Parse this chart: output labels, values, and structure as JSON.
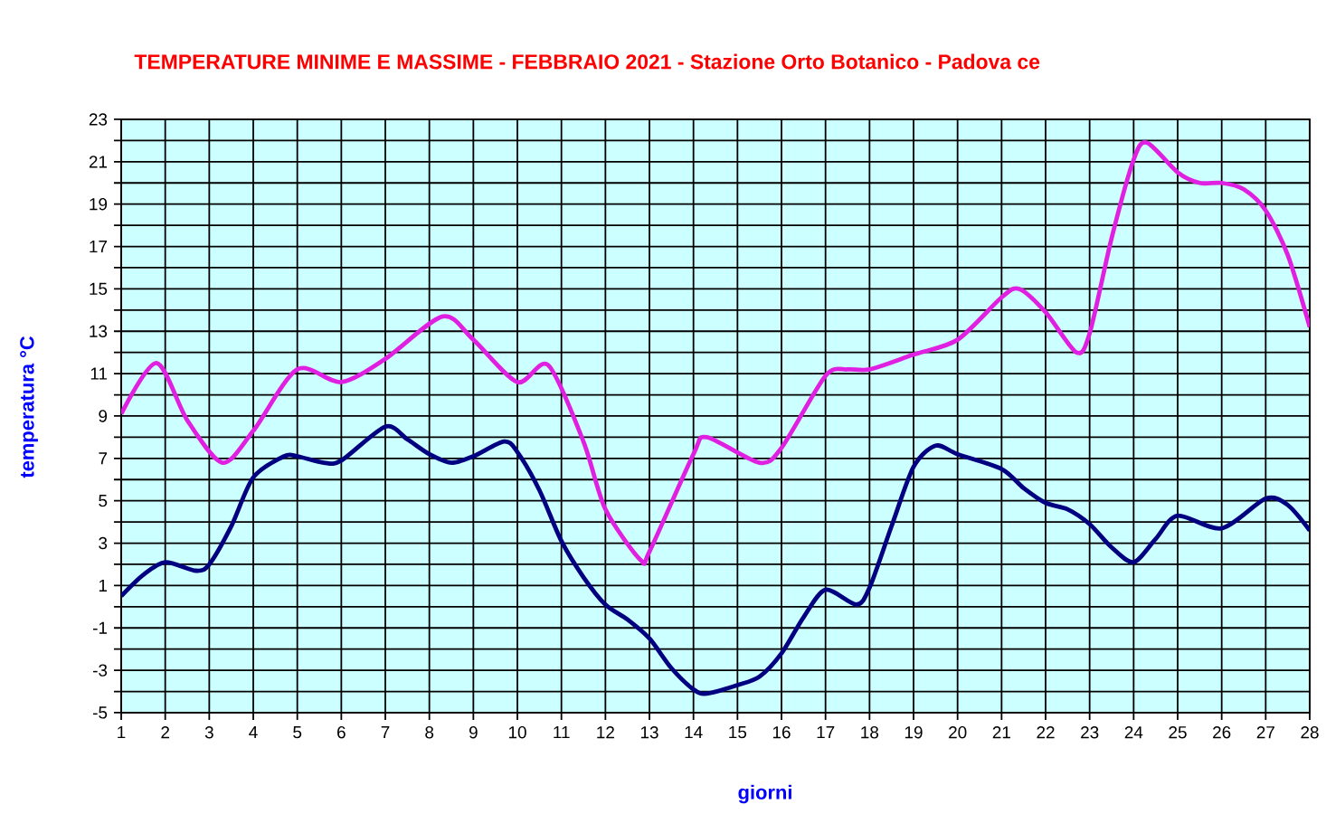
{
  "chart_data": {
    "type": "line",
    "title": "TEMPERATURE MINIME E MASSIME  - FEBBRAIO 2021 - Stazione Orto Botanico - Padova ce",
    "xlabel": "giorni",
    "ylabel": "temperatura °C",
    "xlim": [
      1,
      28
    ],
    "ylim": [
      -5,
      23
    ],
    "xticks": [
      1,
      2,
      3,
      4,
      5,
      6,
      7,
      8,
      9,
      10,
      11,
      12,
      13,
      14,
      15,
      16,
      17,
      18,
      19,
      20,
      21,
      22,
      23,
      24,
      25,
      26,
      27,
      28
    ],
    "yticks": [
      -5,
      {
        "value": -4,
        "label": null
      },
      -3,
      {
        "value": -2,
        "label": null
      },
      -1,
      {
        "value": 0,
        "label": null
      },
      1,
      {
        "value": 2,
        "label": null
      },
      3,
      {
        "value": 4,
        "label": null
      },
      5,
      {
        "value": 6,
        "label": null
      },
      7,
      {
        "value": 8,
        "label": null
      },
      9,
      {
        "value": 10,
        "label": null
      },
      11,
      {
        "value": 12,
        "label": null
      },
      13,
      {
        "value": 14,
        "label": null
      },
      15,
      {
        "value": 16,
        "label": null
      },
      17,
      {
        "value": 18,
        "label": null
      },
      19,
      {
        "value": 20,
        "label": null
      },
      21,
      {
        "value": 22,
        "label": null
      },
      23
    ],
    "grid": true,
    "series": [
      {
        "color": "#e020e0",
        "x": [
          1,
          1.8,
          2.5,
          3.3,
          4,
          5,
          6,
          7,
          8.3,
          9,
          10,
          10.7,
          11.5,
          12,
          12.8,
          13,
          14,
          14.3,
          15.5,
          16,
          17,
          17.5,
          18,
          19,
          20,
          21,
          21.4,
          22,
          22.7,
          23,
          23.5,
          24,
          24.3,
          25,
          25.5,
          26,
          26.5,
          27,
          27.5,
          28
        ],
        "values": [
          9.1,
          11.5,
          8.8,
          6.8,
          8.3,
          11.2,
          10.6,
          11.7,
          13.7,
          12.6,
          10.6,
          11.4,
          7.8,
          4.6,
          2.2,
          2.6,
          7.2,
          8.0,
          6.8,
          7.5,
          10.9,
          11.2,
          11.2,
          11.9,
          12.6,
          14.6,
          15.0,
          13.9,
          12.0,
          12.9,
          17.4,
          21.1,
          21.9,
          20.5,
          20.0,
          20.0,
          19.7,
          18.7,
          16.6,
          13.2
        ]
      },
      {
        "color": "#000080",
        "x": [
          1,
          1.5,
          2,
          2.7,
          3,
          3.5,
          4,
          4.7,
          5,
          5.6,
          6,
          7,
          7.5,
          8,
          8.5,
          9,
          9.7,
          10,
          10.5,
          11,
          11.5,
          12,
          12.5,
          13,
          13.5,
          14,
          14.3,
          15,
          15.5,
          16,
          16.5,
          17,
          17.7,
          18,
          18.5,
          19,
          19.5,
          20,
          21,
          21.5,
          22,
          22.5,
          23,
          23.5,
          24,
          24.5,
          25,
          26,
          27,
          27.5,
          28
        ],
        "values": [
          0.5,
          1.5,
          2.1,
          1.7,
          2.0,
          3.8,
          6.1,
          7.1,
          7.1,
          6.8,
          6.9,
          8.5,
          7.9,
          7.2,
          6.8,
          7.1,
          7.8,
          7.3,
          5.5,
          3.1,
          1.4,
          0.1,
          -0.6,
          -1.5,
          -2.9,
          -3.9,
          -4.1,
          -3.7,
          -3.3,
          -2.2,
          -0.5,
          0.8,
          0.1,
          0.9,
          3.8,
          6.6,
          7.6,
          7.2,
          6.5,
          5.6,
          4.9,
          4.6,
          3.9,
          2.8,
          2.1,
          3.2,
          4.3,
          3.7,
          5.1,
          4.8,
          3.6
        ]
      }
    ]
  }
}
